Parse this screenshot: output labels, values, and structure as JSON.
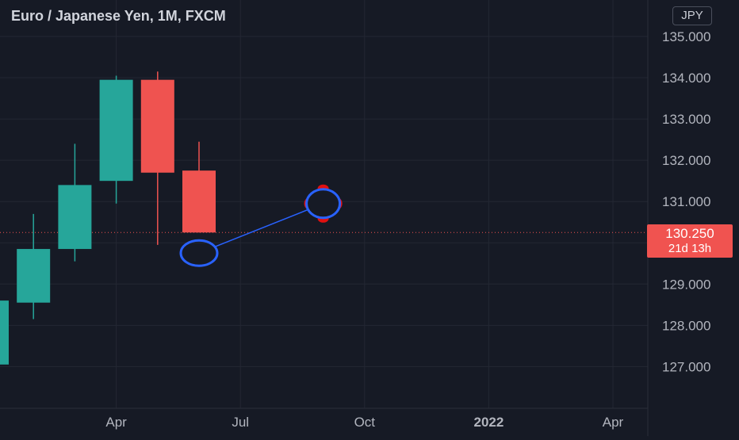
{
  "title": "Euro / Japanese Yen, 1M, FXCM",
  "currency": "JPY",
  "last_price": {
    "value": "130.250",
    "countdown": "21d 13h"
  },
  "colors": {
    "background": "#161a25",
    "grid": "#232733",
    "text": "#b2b5be",
    "up": "#26a69a",
    "down": "#ef5350",
    "drawing": "#2962ff",
    "marker": "#e01010"
  },
  "chart_data": {
    "type": "candlestick",
    "ylim": [
      126.0,
      135.4
    ],
    "y_ticks": [
      "127.000",
      "128.000",
      "129.000",
      "130.000",
      "131.000",
      "132.000",
      "133.000",
      "134.000",
      "135.000"
    ],
    "x_ticks": [
      {
        "label": "Apr",
        "at": 3
      },
      {
        "label": "Jul",
        "at": 6
      },
      {
        "label": "Oct",
        "at": 9
      },
      {
        "label": "2022",
        "at": 12
      },
      {
        "label": "Apr",
        "at": 15
      }
    ],
    "candles": [
      {
        "i": 0,
        "open": 127.05,
        "high": 128.6,
        "low": 127.05,
        "close": 128.6
      },
      {
        "i": 1,
        "open": 128.55,
        "high": 130.7,
        "low": 128.15,
        "close": 129.85
      },
      {
        "i": 2,
        "open": 129.85,
        "high": 132.4,
        "low": 129.55,
        "close": 131.4
      },
      {
        "i": 3,
        "open": 131.5,
        "high": 134.05,
        "low": 130.95,
        "close": 133.95
      },
      {
        "i": 4,
        "open": 133.95,
        "high": 134.15,
        "low": 129.95,
        "close": 131.7
      },
      {
        "i": 5,
        "open": 131.75,
        "high": 132.45,
        "low": 130.25,
        "close": 130.25
      }
    ],
    "drawing": {
      "start": {
        "i": 5,
        "price": 129.75
      },
      "end": {
        "i": 8,
        "price": 130.95
      }
    }
  }
}
